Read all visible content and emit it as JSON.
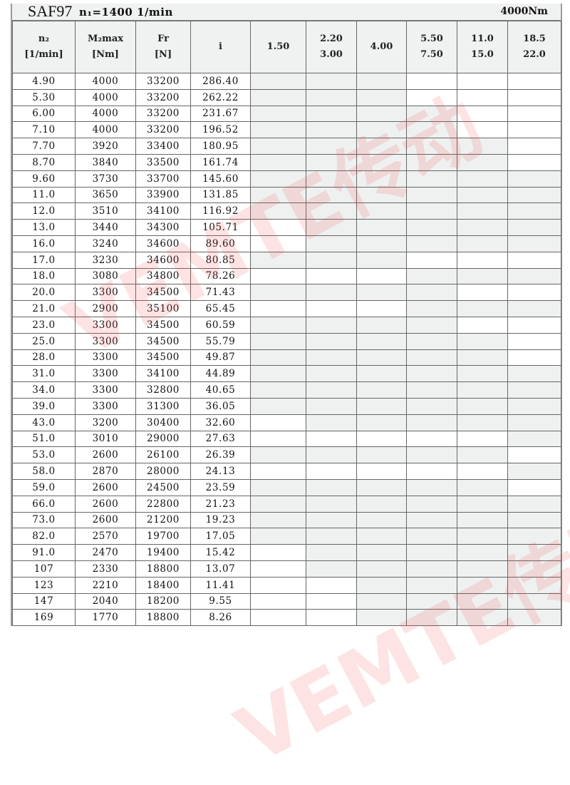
{
  "title": {
    "model": "SAF97",
    "input_speed": "n₁=1400 1/min",
    "torque": "4000Nm"
  },
  "headers": [
    {
      "line1": "n₂",
      "line2": "[1/min]"
    },
    {
      "line1": "M₂max",
      "line2": "[Nm]"
    },
    {
      "line1": "Fr",
      "line2": "[N]"
    },
    {
      "line1": "i",
      "line2": ""
    },
    {
      "line1": "1.50",
      "line2": ""
    },
    {
      "line1": "2.20",
      "line2": "3.00"
    },
    {
      "line1": "4.00",
      "line2": ""
    },
    {
      "line1": "5.50",
      "line2": "7.50"
    },
    {
      "line1": "11.0",
      "line2": "15.0"
    },
    {
      "line1": "18.5",
      "line2": "22.0"
    }
  ],
  "availability_legend": {
    "G": "#eff1f1",
    "W": "#ffffff"
  },
  "rows": [
    {
      "n2": "4.90",
      "m2": "4000",
      "fr": "33200",
      "i": "286.40",
      "motors": "GGGWWW"
    },
    {
      "n2": "5.30",
      "m2": "4000",
      "fr": "33200",
      "i": "262.22",
      "motors": "GGGWWW"
    },
    {
      "n2": "6.00",
      "m2": "4000",
      "fr": "33200",
      "i": "231.67",
      "motors": "GGGGWW"
    },
    {
      "n2": "7.10",
      "m2": "4000",
      "fr": "33200",
      "i": "196.52",
      "motors": "GGGGWW"
    },
    {
      "n2": "7.70",
      "m2": "3920",
      "fr": "33400",
      "i": "180.95",
      "motors": "GGGGGW"
    },
    {
      "n2": "8.70",
      "m2": "3840",
      "fr": "33500",
      "i": "161.74",
      "motors": "GGGGGW"
    },
    {
      "n2": "9.60",
      "m2": "3730",
      "fr": "33700",
      "i": "145.60",
      "motors": "GGGGGG"
    },
    {
      "n2": "11.0",
      "m2": "3650",
      "fr": "33900",
      "i": "131.85",
      "motors": "GGGGGG"
    },
    {
      "n2": "12.0",
      "m2": "3510",
      "fr": "34100",
      "i": "116.92",
      "motors": "GGGGGG"
    },
    {
      "n2": "13.0",
      "m2": "3440",
      "fr": "34300",
      "i": "105.71",
      "motors": "WGGGGG"
    },
    {
      "n2": "16.0",
      "m2": "3240",
      "fr": "34600",
      "i": "89.60",
      "motors": "WGGGGG"
    },
    {
      "n2": "17.0",
      "m2": "3230",
      "fr": "34600",
      "i": "80.85",
      "motors": "GGGWWW"
    },
    {
      "n2": "18.0",
      "m2": "3080",
      "fr": "34800",
      "i": "78.26",
      "motors": "WWWGGG"
    },
    {
      "n2": "20.0",
      "m2": "3300",
      "fr": "34500",
      "i": "71.43",
      "motors": "GGGGWW"
    },
    {
      "n2": "21.0",
      "m2": "2900",
      "fr": "35100",
      "i": "65.45",
      "motors": "WWWGGG"
    },
    {
      "n2": "23.0",
      "m2": "3300",
      "fr": "34500",
      "i": "60.59",
      "motors": "GGGGWW"
    },
    {
      "n2": "25.0",
      "m2": "3300",
      "fr": "34500",
      "i": "55.79",
      "motors": "GGGGGW"
    },
    {
      "n2": "28.0",
      "m2": "3300",
      "fr": "34500",
      "i": "49.87",
      "motors": "GGGGGW"
    },
    {
      "n2": "31.0",
      "m2": "3300",
      "fr": "34100",
      "i": "44.89",
      "motors": "GGGGGG"
    },
    {
      "n2": "34.0",
      "m2": "3300",
      "fr": "32800",
      "i": "40.65",
      "motors": "GGGGGG"
    },
    {
      "n2": "39.0",
      "m2": "3300",
      "fr": "31300",
      "i": "36.05",
      "motors": "GGGGGG"
    },
    {
      "n2": "43.0",
      "m2": "3200",
      "fr": "30400",
      "i": "32.60",
      "motors": "WGGGGG"
    },
    {
      "n2": "51.0",
      "m2": "3010",
      "fr": "29000",
      "i": "27.63",
      "motors": "WWWWWG"
    },
    {
      "n2": "53.0",
      "m2": "2600",
      "fr": "26100",
      "i": "26.39",
      "motors": "GGGGGW"
    },
    {
      "n2": "58.0",
      "m2": "2870",
      "fr": "28000",
      "i": "24.13",
      "motors": "WWWWWG"
    },
    {
      "n2": "59.0",
      "m2": "2600",
      "fr": "24500",
      "i": "23.59",
      "motors": "GGGGGW"
    },
    {
      "n2": "66.0",
      "m2": "2600",
      "fr": "22800",
      "i": "21.23",
      "motors": "GGGGGG"
    },
    {
      "n2": "73.0",
      "m2": "2600",
      "fr": "21200",
      "i": "19.23",
      "motors": "GGGGGG"
    },
    {
      "n2": "82.0",
      "m2": "2570",
      "fr": "19700",
      "i": "17.05",
      "motors": "GGGGGG"
    },
    {
      "n2": "91.0",
      "m2": "2470",
      "fr": "19400",
      "i": "15.42",
      "motors": "WGGGGG"
    },
    {
      "n2": "107",
      "m2": "2330",
      "fr": "18800",
      "i": "13.07",
      "motors": "WGGGGG"
    },
    {
      "n2": "123",
      "m2": "2210",
      "fr": "18400",
      "i": "11.41",
      "motors": "WWGGGG"
    },
    {
      "n2": "147",
      "m2": "2040",
      "fr": "18200",
      "i": "9.55",
      "motors": "WWGGGG"
    },
    {
      "n2": "169",
      "m2": "1770",
      "fr": "18800",
      "i": "8.26",
      "motors": "WWGGGG"
    }
  ],
  "watermark": "VEMTE传动"
}
